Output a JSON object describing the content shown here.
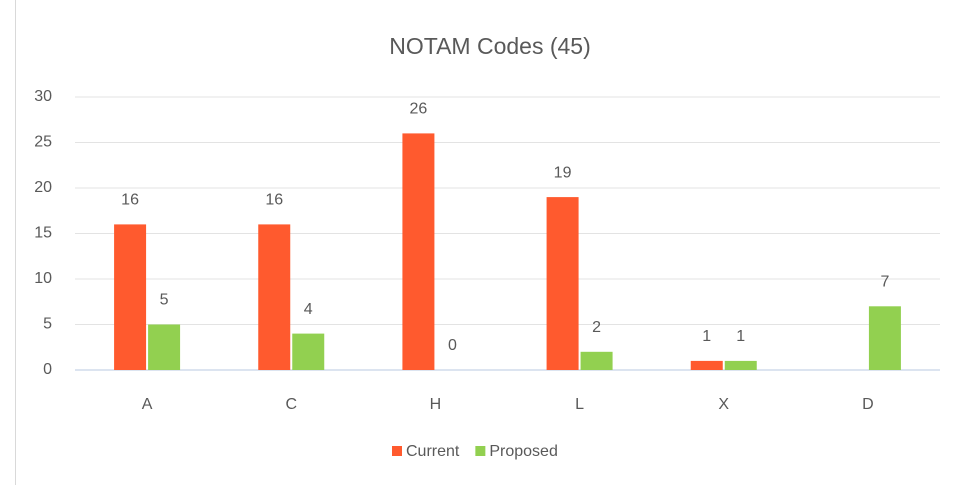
{
  "chart_data": {
    "type": "bar",
    "title": "NOTAM Codes (45)",
    "categories": [
      "A",
      "C",
      "H",
      "L",
      "X",
      "D"
    ],
    "series": [
      {
        "name": "Current",
        "color": "#ff5a2e",
        "values": [
          16,
          16,
          26,
          19,
          1,
          null
        ]
      },
      {
        "name": "Proposed",
        "color": "#92d050",
        "values": [
          5,
          4,
          0,
          2,
          1,
          7
        ]
      }
    ],
    "ylim": [
      0,
      30
    ],
    "yticks": [
      0,
      5,
      10,
      15,
      20,
      25,
      30
    ],
    "grid": true,
    "legend": "bottom"
  }
}
